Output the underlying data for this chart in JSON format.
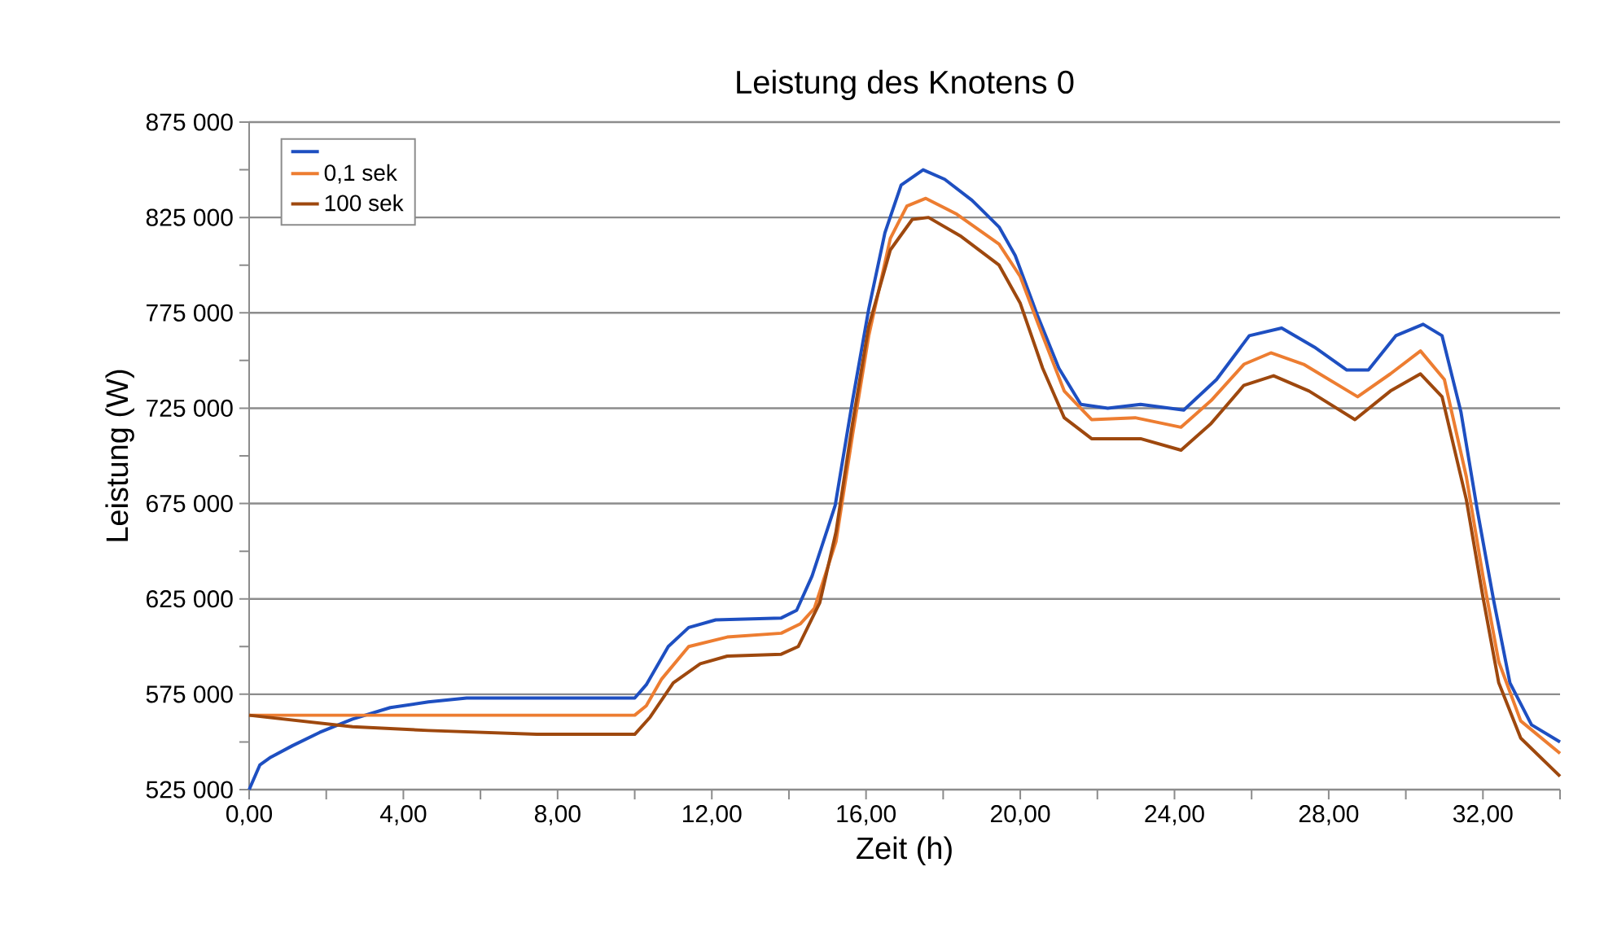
{
  "chart_data": {
    "type": "line",
    "title": "Leistung des Knotens 0",
    "xlabel": "Zeit (h)",
    "ylabel": "Leistung (W)",
    "xlim": [
      0,
      34
    ],
    "ylim": [
      525000,
      875000
    ],
    "xticks": [
      {
        "value": 0,
        "label": "0,00"
      },
      {
        "value": 2,
        "label": null
      },
      {
        "value": 4,
        "label": "4,00"
      },
      {
        "value": 6,
        "label": null
      },
      {
        "value": 8,
        "label": "8,00"
      },
      {
        "value": 10,
        "label": null
      },
      {
        "value": 12,
        "label": "12,00"
      },
      {
        "value": 14,
        "label": null
      },
      {
        "value": 16,
        "label": "16,00"
      },
      {
        "value": 18,
        "label": null
      },
      {
        "value": 20,
        "label": "20,00"
      },
      {
        "value": 22,
        "label": null
      },
      {
        "value": 24,
        "label": "24,00"
      },
      {
        "value": 26,
        "label": null
      },
      {
        "value": 28,
        "label": "28,00"
      },
      {
        "value": 30,
        "label": null
      },
      {
        "value": 32,
        "label": "32,00"
      },
      {
        "value": 34,
        "label": null
      }
    ],
    "yticks": [
      {
        "value": 525000,
        "label": "525 000"
      },
      {
        "value": 550000,
        "label": null
      },
      {
        "value": 575000,
        "label": "575 000"
      },
      {
        "value": 600000,
        "label": null
      },
      {
        "value": 625000,
        "label": "625 000"
      },
      {
        "value": 650000,
        "label": null
      },
      {
        "value": 675000,
        "label": "675 000"
      },
      {
        "value": 700000,
        "label": null
      },
      {
        "value": 725000,
        "label": "725 000"
      },
      {
        "value": 750000,
        "label": null
      },
      {
        "value": 775000,
        "label": "775 000"
      },
      {
        "value": 800000,
        "label": null
      },
      {
        "value": 825000,
        "label": "825 000"
      },
      {
        "value": 850000,
        "label": null
      },
      {
        "value": 875000,
        "label": "875 000"
      }
    ],
    "grid": "y",
    "legend": "top left",
    "series": [
      {
        "color": "#1e4fc1",
        "x": [
          0,
          0.28,
          0.56,
          1.12,
          1.83,
          2.68,
          3.66,
          4.65,
          5.64,
          10.0,
          10.3,
          10.87,
          11.4,
          12.1,
          13.8,
          14.2,
          14.6,
          15.2,
          15.65,
          16.07,
          16.49,
          16.91,
          17.48,
          18.04,
          18.75,
          19.45,
          19.87,
          20.44,
          21.0,
          21.57,
          22.27,
          23.12,
          24.24,
          25.09,
          25.94,
          26.78,
          27.63,
          28.47,
          29.03,
          29.74,
          30.45,
          30.94,
          31.43,
          31.85,
          32.28,
          32.7,
          33.26,
          34
        ],
        "values": [
          525000,
          538000,
          542000,
          548000,
          555000,
          562000,
          568000,
          571000,
          573000,
          573000,
          580000,
          600000,
          610000,
          614000,
          615000,
          619000,
          637000,
          674000,
          729000,
          777000,
          817000,
          842000,
          850000,
          845000,
          834000,
          820000,
          805000,
          774000,
          746000,
          727000,
          725000,
          727000,
          724000,
          740000,
          763000,
          767000,
          757000,
          745000,
          745000,
          763000,
          769000,
          763000,
          723000,
          672000,
          624000,
          581000,
          559000,
          550000
        ]
      },
      {
        "name": "0,1 sek",
        "color": "#ed7d31",
        "x": [
          0,
          10.0,
          10.3,
          10.7,
          11.4,
          12.4,
          13.8,
          14.3,
          14.66,
          15.22,
          15.65,
          16.07,
          16.63,
          17.06,
          17.55,
          18.33,
          19.45,
          20.0,
          20.58,
          21.14,
          21.85,
          22.98,
          24.17,
          24.95,
          25.8,
          26.5,
          27.35,
          28.75,
          29.6,
          30.38,
          31.0,
          31.57,
          32.0,
          32.41,
          32.98,
          34
        ],
        "values": [
          564000,
          564000,
          569000,
          583000,
          600000,
          605000,
          607000,
          612000,
          620000,
          655000,
          711000,
          763000,
          814000,
          831000,
          835000,
          827000,
          811000,
          794000,
          763000,
          734000,
          719000,
          720000,
          715000,
          729000,
          748000,
          754000,
          748000,
          731000,
          743000,
          755000,
          740000,
          689000,
          637000,
          592000,
          561000,
          544000
        ]
      },
      {
        "name": "100 sek",
        "color": "#9e480e",
        "x": [
          0,
          2.68,
          4.65,
          7.46,
          10.0,
          10.4,
          11.0,
          11.7,
          12.4,
          13.8,
          14.24,
          14.8,
          15.22,
          15.65,
          16.07,
          16.63,
          17.2,
          17.62,
          18.47,
          19.45,
          20.0,
          20.58,
          21.14,
          21.85,
          23.12,
          24.17,
          24.95,
          25.8,
          26.57,
          27.49,
          28.68,
          29.6,
          30.38,
          30.94,
          31.57,
          32.0,
          32.41,
          32.98,
          34
        ],
        "values": [
          564000,
          558000,
          556000,
          554000,
          554000,
          563000,
          581000,
          591000,
          595000,
          596000,
          600000,
          623000,
          660000,
          717000,
          768000,
          808000,
          824000,
          825000,
          815000,
          800000,
          780000,
          746000,
          720000,
          709000,
          709000,
          703000,
          717000,
          737000,
          742000,
          734000,
          719000,
          734000,
          743000,
          731000,
          677000,
          626000,
          581000,
          552000,
          532000
        ]
      }
    ]
  }
}
